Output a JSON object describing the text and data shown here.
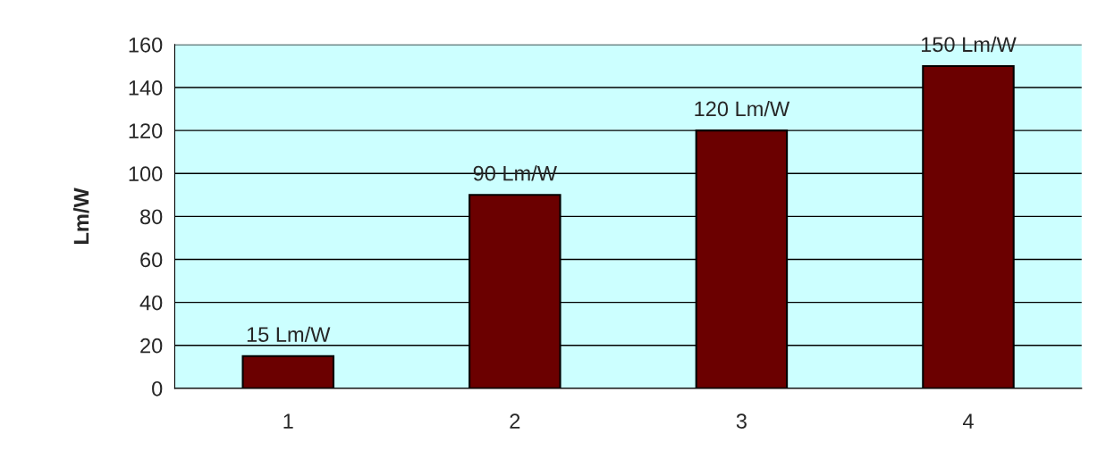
{
  "chart_data": {
    "type": "bar",
    "ylabel": "Lm/W",
    "categories": [
      "1",
      "2",
      "3",
      "4"
    ],
    "values": [
      15,
      90,
      120,
      150
    ],
    "color": "#6b0000",
    "value_labels": [
      "15 Lm/W",
      "90 Lm/W",
      "120 Lm/W",
      "150 Lm/W"
    ],
    "ylim": [
      0,
      160
    ],
    "yticks": [
      0,
      20,
      40,
      60,
      80,
      100,
      120,
      140,
      160
    ],
    "grid": "y"
  }
}
